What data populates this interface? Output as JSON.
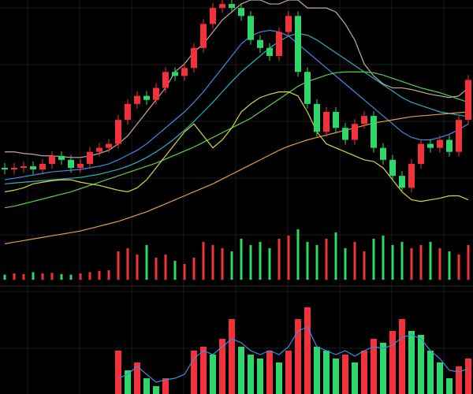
{
  "chart_data": [
    {
      "type": "candlestick",
      "open": [
        70,
        68,
        70,
        72,
        68,
        75,
        85,
        80,
        70,
        75,
        90,
        95,
        100,
        130,
        150,
        160,
        155,
        170,
        190,
        185,
        195,
        220,
        250,
        270,
        275,
        270,
        260,
        230,
        220,
        210,
        240,
        260,
        190,
        150,
        115,
        140,
        120,
        105,
        125,
        135,
        95,
        80,
        60,
        45,
        75,
        100,
        95,
        105,
        90,
        130
      ],
      "high": [
        76,
        76,
        78,
        78,
        81,
        91,
        91,
        86,
        81,
        96,
        101,
        106,
        136,
        156,
        166,
        166,
        176,
        196,
        196,
        201,
        226,
        256,
        276,
        280,
        280,
        276,
        266,
        236,
        226,
        246,
        266,
        266,
        196,
        156,
        146,
        146,
        126,
        131,
        141,
        141,
        101,
        86,
        66,
        81,
        106,
        106,
        111,
        111,
        136,
        186
      ],
      "low": [
        62,
        62,
        64,
        62,
        62,
        69,
        74,
        64,
        64,
        69,
        84,
        89,
        94,
        124,
        144,
        149,
        149,
        164,
        179,
        179,
        189,
        214,
        244,
        264,
        264,
        254,
        224,
        214,
        204,
        204,
        234,
        184,
        144,
        109,
        109,
        114,
        99,
        99,
        119,
        89,
        74,
        54,
        39,
        39,
        69,
        89,
        89,
        84,
        84,
        124
      ],
      "close": [
        68,
        70,
        72,
        68,
        75,
        85,
        80,
        70,
        75,
        90,
        95,
        100,
        130,
        150,
        160,
        155,
        170,
        190,
        185,
        195,
        220,
        250,
        270,
        275,
        270,
        260,
        230,
        220,
        210,
        240,
        260,
        190,
        150,
        115,
        140,
        120,
        105,
        125,
        135,
        95,
        80,
        60,
        45,
        75,
        100,
        95,
        105,
        90,
        130,
        180
      ],
      "up_color": "#f0333a",
      "down_color": "#2fd66a",
      "ylim": [
        -70,
        280
      ],
      "lines": [
        {
          "color": "#c8a8a8",
          "values": [
            90,
            90,
            88,
            87,
            85,
            85,
            84,
            83,
            83,
            85,
            88,
            92,
            100,
            110,
            125,
            140,
            155,
            170,
            190,
            200,
            215,
            225,
            240,
            255,
            265,
            275,
            280,
            280,
            275,
            275,
            280,
            280,
            270,
            270,
            270,
            265,
            250,
            230,
            200,
            185,
            175,
            170,
            170,
            168,
            165,
            162,
            160,
            158,
            160,
            170
          ]
        },
        {
          "color": "#3a8ee6",
          "values": [
            55,
            57,
            59,
            61,
            63,
            65,
            66,
            67,
            68,
            70,
            72,
            75,
            80,
            86,
            92,
            100,
            110,
            120,
            130,
            140,
            152,
            165,
            180,
            195,
            210,
            225,
            235,
            240,
            242,
            240,
            235,
            225,
            215,
            205,
            195,
            185,
            175,
            165,
            155,
            145,
            135,
            125,
            115,
            108,
            105,
            105,
            108,
            112,
            118,
            125
          ]
        },
        {
          "color": "#2ab0c0",
          "values": [
            50,
            51,
            52,
            53,
            54,
            55,
            56,
            57,
            58,
            60,
            62,
            65,
            68,
            72,
            77,
            83,
            90,
            98,
            107,
            117,
            128,
            140,
            152,
            165,
            178,
            190,
            200,
            210,
            220,
            228,
            235,
            238,
            236,
            230,
            222,
            214,
            206,
            198,
            190,
            182,
            174,
            166,
            158,
            152,
            148,
            144,
            140,
            138,
            136,
            134
          ]
        },
        {
          "color": "#5ad04a",
          "values": [
            20,
            22,
            25,
            28,
            31,
            34,
            37,
            40,
            44,
            48,
            52,
            56,
            60,
            64,
            68,
            72,
            76,
            81,
            86,
            91,
            96,
            102,
            108,
            114,
            120,
            126,
            132,
            140,
            148,
            156,
            164,
            172,
            178,
            182,
            186,
            189,
            190,
            190,
            190,
            189,
            186,
            182,
            178,
            174,
            170,
            167,
            164,
            160,
            156,
            152
          ]
        },
        {
          "color": "#d8d840",
          "values": [
            40,
            42,
            45,
            50,
            52,
            54,
            55,
            55,
            52,
            50,
            48,
            45,
            42,
            40,
            45,
            55,
            70,
            85,
            100,
            115,
            125,
            110,
            95,
            105,
            120,
            140,
            150,
            158,
            162,
            165,
            165,
            160,
            140,
            115,
            100,
            95,
            90,
            85,
            80,
            78,
            70,
            55,
            40,
            30,
            28,
            30,
            32,
            35,
            35,
            30
          ]
        },
        {
          "color": "#e0a040",
          "values": [
            -25,
            -23,
            -21,
            -19,
            -17,
            -15,
            -13,
            -11,
            -9,
            -6,
            -3,
            0,
            3,
            7,
            11,
            15,
            20,
            25,
            30,
            35,
            40,
            45,
            50,
            56,
            62,
            68,
            74,
            80,
            86,
            92,
            97,
            101,
            105,
            108,
            111,
            114,
            117,
            120,
            123,
            126,
            128,
            130,
            132,
            134,
            135,
            136,
            137,
            138,
            139,
            140
          ]
        }
      ]
    },
    {
      "type": "bar",
      "values": [
        8,
        10,
        9,
        12,
        10,
        11,
        9,
        8,
        10,
        12,
        14,
        15,
        45,
        50,
        40,
        55,
        35,
        40,
        30,
        25,
        35,
        60,
        55,
        50,
        45,
        65,
        55,
        60,
        50,
        65,
        70,
        80,
        60,
        55,
        65,
        75,
        50,
        60,
        45,
        65,
        70,
        55,
        60,
        50,
        55,
        60,
        50,
        45,
        40,
        55
      ],
      "ylim": [
        0,
        100
      ]
    },
    {
      "type": "bar",
      "values": [
        0,
        0,
        0,
        0,
        0,
        0,
        0,
        0,
        0,
        0,
        0,
        0,
        55,
        30,
        40,
        20,
        10,
        20,
        0,
        0,
        55,
        60,
        50,
        70,
        95,
        60,
        50,
        45,
        55,
        40,
        55,
        95,
        110,
        60,
        55,
        45,
        50,
        40,
        55,
        70,
        65,
        80,
        95,
        80,
        75,
        55,
        40,
        20,
        35,
        45
      ],
      "ylim": [
        0,
        130
      ],
      "line": {
        "color": "#3a8ee6",
        "values": [
          null,
          null,
          null,
          null,
          null,
          null,
          null,
          null,
          null,
          null,
          null,
          null,
          20,
          25,
          35,
          25,
          15,
          18,
          20,
          25,
          45,
          55,
          50,
          60,
          70,
          65,
          55,
          50,
          55,
          50,
          60,
          80,
          85,
          60,
          55,
          50,
          55,
          48,
          55,
          60,
          58,
          62,
          72,
          75,
          70,
          55,
          45,
          30,
          28,
          32
        ]
      }
    }
  ]
}
